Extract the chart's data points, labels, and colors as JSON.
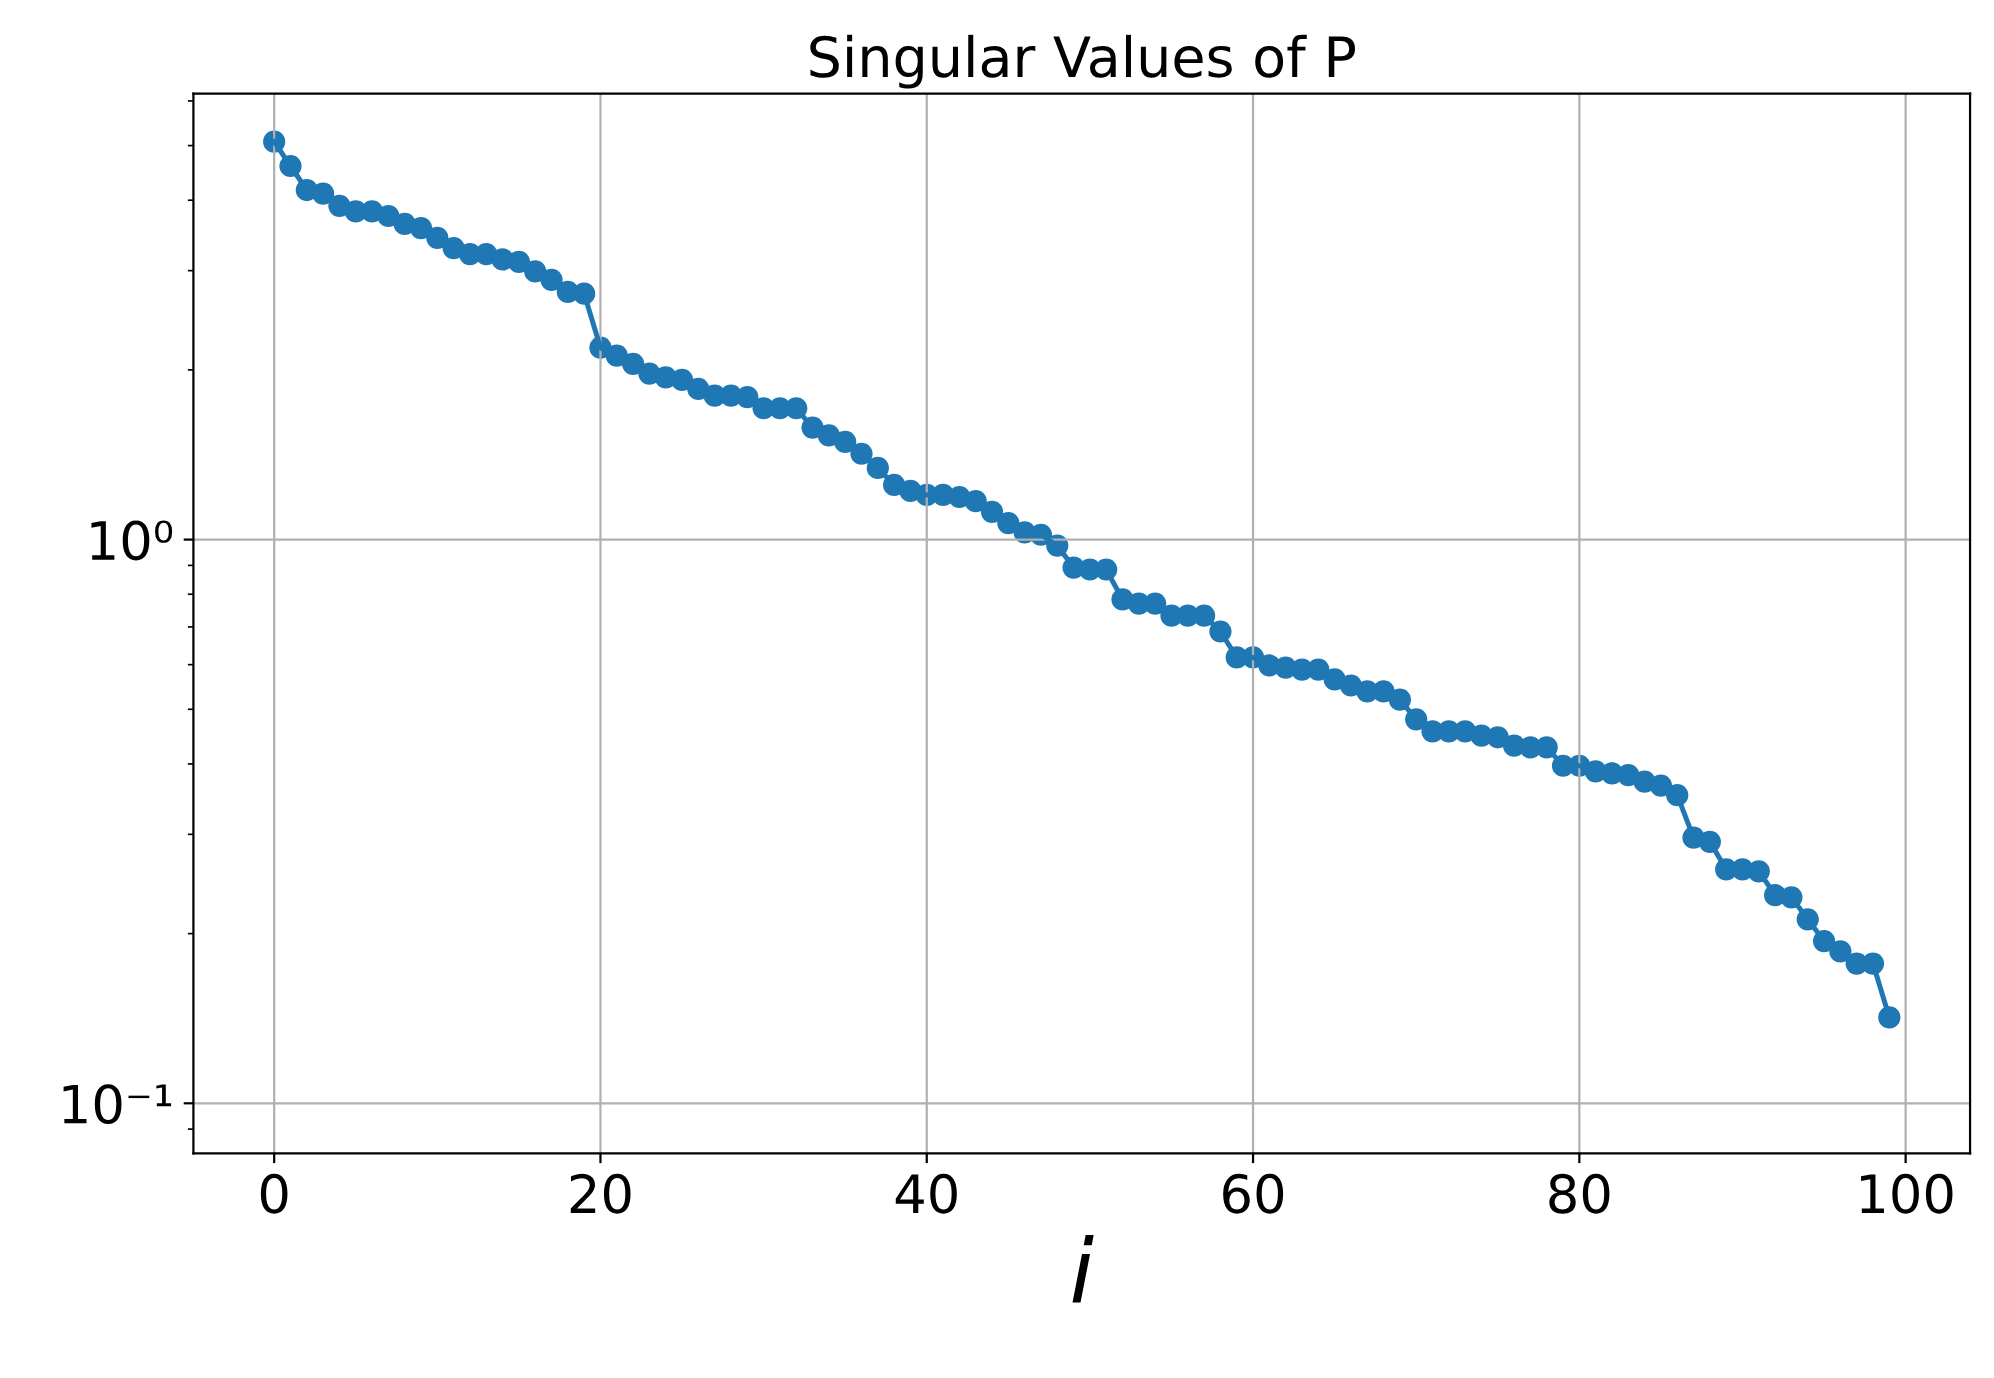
{
  "chart_data": {
    "type": "line",
    "title": "Singular Values of P",
    "xlabel": "i",
    "x": [
      0,
      1,
      2,
      3,
      4,
      5,
      6,
      7,
      8,
      9,
      10,
      11,
      12,
      13,
      14,
      15,
      16,
      17,
      18,
      19,
      20,
      21,
      22,
      23,
      24,
      25,
      26,
      27,
      28,
      29,
      30,
      31,
      32,
      33,
      34,
      35,
      36,
      37,
      38,
      39,
      40,
      41,
      42,
      43,
      44,
      45,
      46,
      47,
      48,
      49,
      50,
      51,
      52,
      53,
      54,
      55,
      56,
      57,
      58,
      59,
      60,
      61,
      62,
      63,
      64,
      65,
      66,
      67,
      68,
      69,
      70,
      71,
      72,
      73,
      74,
      75,
      76,
      77,
      78,
      79,
      80,
      81,
      82,
      83,
      84,
      85,
      86,
      87,
      88,
      89,
      90,
      91,
      92,
      93,
      94,
      95,
      96,
      97,
      98,
      99
    ],
    "series": [
      {
        "color": "#1f77b4",
        "values": [
          5.08,
          4.6,
          4.17,
          4.11,
          3.91,
          3.82,
          3.82,
          3.75,
          3.63,
          3.57,
          3.43,
          3.29,
          3.21,
          3.21,
          3.14,
          3.11,
          2.99,
          2.89,
          2.75,
          2.73,
          2.19,
          2.12,
          2.05,
          1.97,
          1.94,
          1.92,
          1.85,
          1.8,
          1.8,
          1.79,
          1.71,
          1.71,
          1.71,
          1.58,
          1.53,
          1.49,
          1.42,
          1.34,
          1.25,
          1.22,
          1.2,
          1.2,
          1.19,
          1.17,
          1.12,
          1.07,
          1.03,
          1.02,
          0.976,
          0.892,
          0.885,
          0.885,
          0.783,
          0.77,
          0.77,
          0.733,
          0.733,
          0.733,
          0.687,
          0.618,
          0.618,
          0.598,
          0.593,
          0.588,
          0.588,
          0.565,
          0.551,
          0.538,
          0.538,
          0.52,
          0.48,
          0.457,
          0.457,
          0.457,
          0.449,
          0.446,
          0.431,
          0.428,
          0.428,
          0.397,
          0.397,
          0.388,
          0.385,
          0.382,
          0.372,
          0.366,
          0.352,
          0.296,
          0.291,
          0.26,
          0.26,
          0.258,
          0.234,
          0.232,
          0.212,
          0.194,
          0.186,
          0.177,
          0.177,
          0.142
        ]
      }
    ],
    "log": true,
    "xlim": [
      -4.95,
      103.95
    ],
    "xticks": [
      0,
      20,
      40,
      60,
      80,
      100
    ],
    "ylim": [
      0.0815,
      6.18
    ],
    "yticks": [
      {
        "value": 0.1,
        "label": "10⁻¹"
      },
      {
        "value": 1,
        "label": "10⁰"
      }
    ],
    "grid": true,
    "marker": "circle",
    "line_style": "solid"
  }
}
